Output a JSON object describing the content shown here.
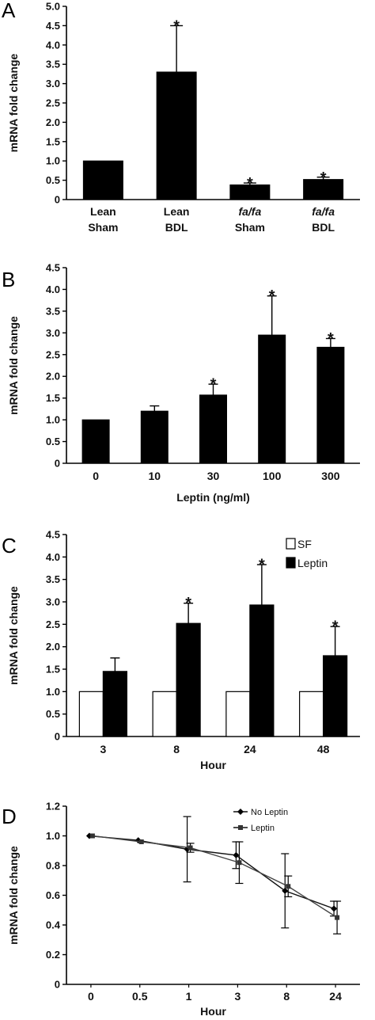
{
  "chart_data": [
    {
      "panel": "A",
      "type": "bar",
      "categories": [
        [
          "Lean",
          "Sham"
        ],
        [
          "Lean",
          "BDL"
        ],
        [
          "fa/fa",
          "Sham"
        ],
        [
          "fa/fa",
          "BDL"
        ]
      ],
      "values": [
        1.0,
        3.3,
        0.38,
        0.52
      ],
      "errors": [
        0,
        1.2,
        0.05,
        0.06
      ],
      "significant": [
        false,
        true,
        true,
        true
      ],
      "ylabel": "mRNA fold change",
      "ylim": [
        0,
        5
      ],
      "yticks": [
        "0",
        "0.5",
        "1.0",
        "1.5",
        "2.0",
        "2.5",
        "3.0",
        "3.5",
        "4.0",
        "4.5",
        "5.0"
      ],
      "bar_color": "#000000"
    },
    {
      "panel": "B",
      "type": "bar",
      "categories": [
        "0",
        "10",
        "30",
        "100",
        "300"
      ],
      "values": [
        1.0,
        1.2,
        1.57,
        2.95,
        2.67
      ],
      "errors": [
        0,
        0.12,
        0.25,
        0.9,
        0.2
      ],
      "significant": [
        false,
        false,
        true,
        true,
        true
      ],
      "xlabel": "Leptin (ng/ml)",
      "ylabel": "mRNA fold change",
      "ylim": [
        0,
        4.5
      ],
      "yticks": [
        "0",
        "0.5",
        "1.0",
        "1.5",
        "2.0",
        "2.5",
        "3.0",
        "3.5",
        "4.0",
        "4.5"
      ],
      "bar_color": "#000000"
    },
    {
      "panel": "C",
      "type": "bar",
      "categories": [
        "3",
        "8",
        "24",
        "48"
      ],
      "series": [
        {
          "name": "SF",
          "values": [
            1.0,
            1.0,
            1.0,
            1.0
          ],
          "errors": [
            0,
            0,
            0,
            0
          ],
          "significant": [
            false,
            false,
            false,
            false
          ],
          "color": "#ffffff"
        },
        {
          "name": "Leptin",
          "values": [
            1.45,
            2.52,
            2.93,
            1.8
          ],
          "errors": [
            0.3,
            0.45,
            0.9,
            0.65
          ],
          "significant": [
            false,
            true,
            true,
            true
          ],
          "color": "#000000"
        }
      ],
      "xlabel": "Hour",
      "ylabel": "mRNA fold change",
      "ylim": [
        0,
        4.5
      ],
      "yticks": [
        "0",
        "0.5",
        "1.0",
        "1.5",
        "2.0",
        "2.5",
        "3.0",
        "3.5",
        "4.0",
        "4.5"
      ],
      "legend": "top-right"
    },
    {
      "panel": "D",
      "type": "line",
      "x": [
        "0",
        "0.5",
        "1",
        "3",
        "8",
        "24"
      ],
      "series": [
        {
          "name": "No Leptin",
          "values": [
            1.0,
            0.97,
            0.91,
            0.87,
            0.63,
            0.51
          ],
          "errors": [
            0,
            0,
            0.22,
            0.09,
            0.25,
            0.05
          ],
          "marker": "diamond"
        },
        {
          "name": "Leptin",
          "values": [
            1.0,
            0.96,
            0.92,
            0.82,
            0.66,
            0.45
          ],
          "errors": [
            0,
            0,
            0.03,
            0.14,
            0.07,
            0.11
          ],
          "marker": "square"
        }
      ],
      "xlabel": "Hour",
      "ylabel": "mRNA fold change",
      "ylim": [
        0,
        1.2
      ],
      "yticks": [
        "0",
        "0.2",
        "0.4",
        "0.6",
        "0.8",
        "1.0",
        "1.2"
      ],
      "legend": "top-right"
    }
  ]
}
